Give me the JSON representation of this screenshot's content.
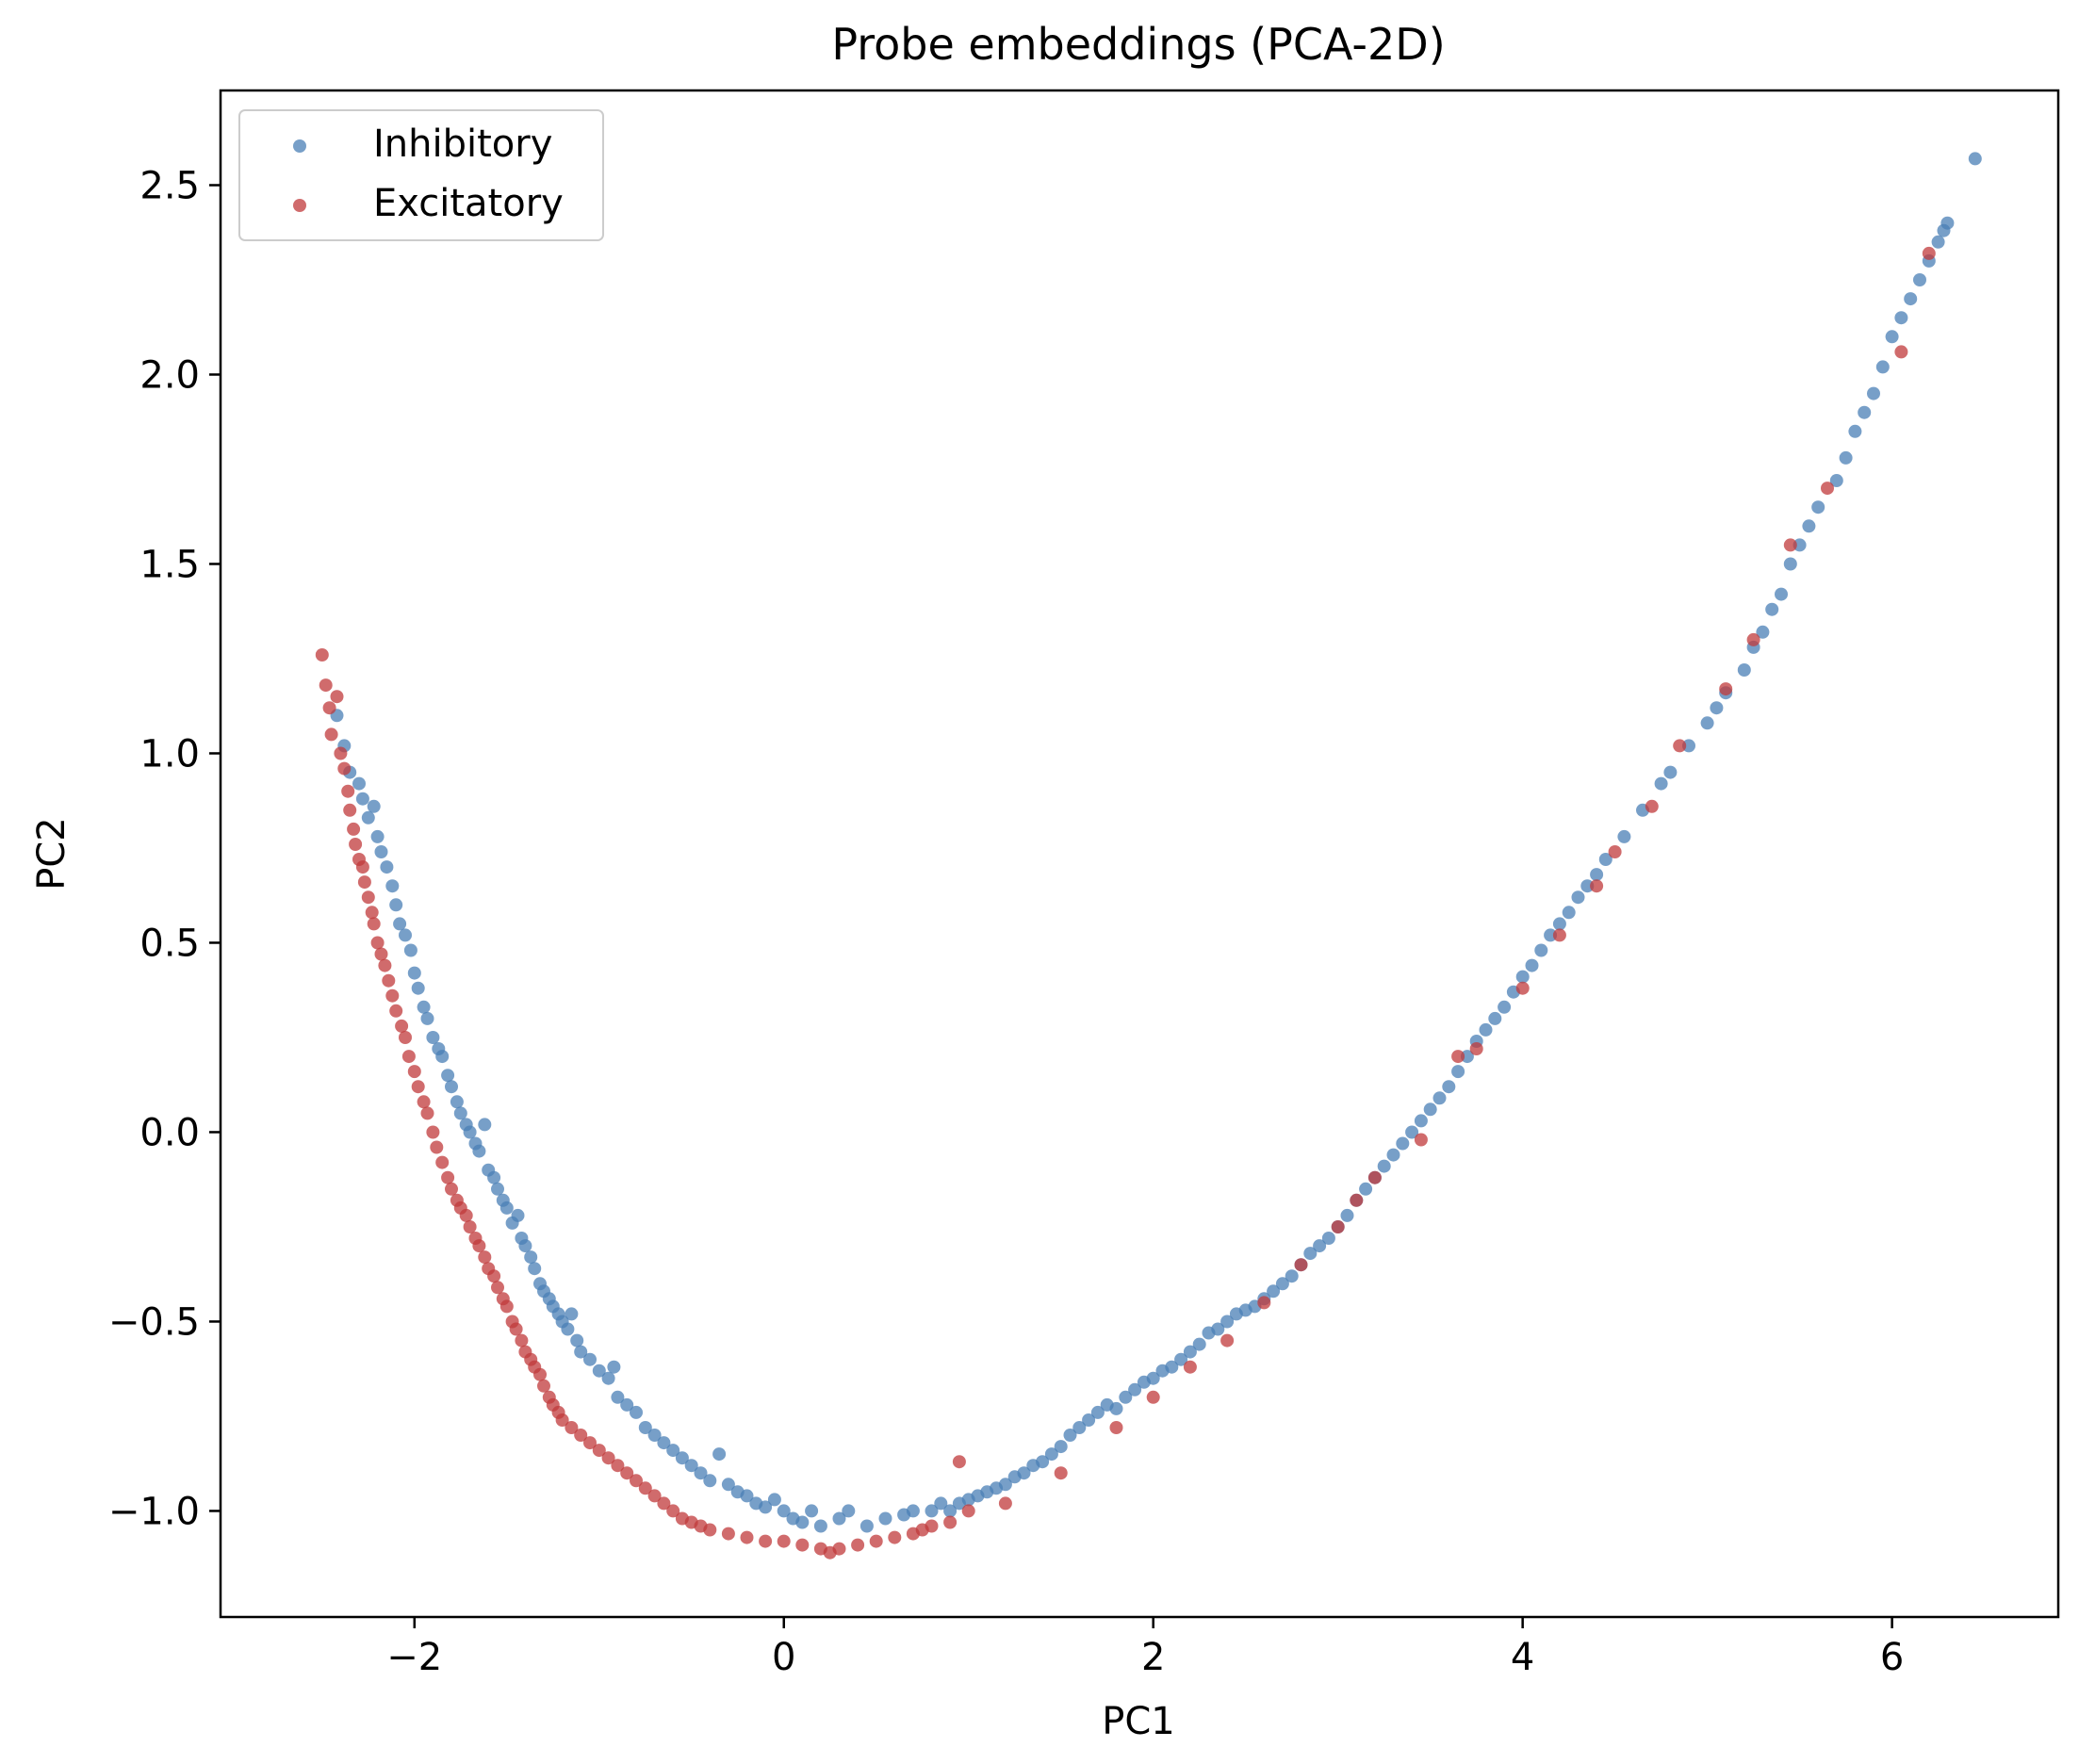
{
  "chart_data": {
    "type": "scatter",
    "title": "Probe embeddings (PCA-2D)",
    "xlabel": "PC1",
    "ylabel": "PC2",
    "xlim": [
      -3.05,
      6.9
    ],
    "ylim": [
      -1.28,
      2.75
    ],
    "xticks": [
      -2,
      0,
      2,
      4,
      6
    ],
    "xtick_labels": [
      "−2",
      "0",
      "2",
      "4",
      "6"
    ],
    "yticks": [
      -1.0,
      -0.5,
      0.0,
      0.5,
      1.0,
      1.5,
      2.0,
      2.5
    ],
    "ytick_labels": [
      "−1.0",
      "−0.5",
      "0.0",
      "0.5",
      "1.0",
      "1.5",
      "2.0",
      "2.5"
    ],
    "grid": false,
    "legend_position": "top-left",
    "series": [
      {
        "name": "Inhibitory",
        "color": "#4a7fb5",
        "points": [
          [
            -2.42,
            1.1
          ],
          [
            -2.38,
            1.02
          ],
          [
            -2.35,
            0.95
          ],
          [
            -2.3,
            0.92
          ],
          [
            -2.28,
            0.88
          ],
          [
            -2.25,
            0.83
          ],
          [
            -2.22,
            0.86
          ],
          [
            -2.2,
            0.78
          ],
          [
            -2.18,
            0.74
          ],
          [
            -2.15,
            0.7
          ],
          [
            -2.12,
            0.65
          ],
          [
            -2.1,
            0.6
          ],
          [
            -2.08,
            0.55
          ],
          [
            -2.05,
            0.52
          ],
          [
            -2.02,
            0.48
          ],
          [
            -2.0,
            0.42
          ],
          [
            -1.98,
            0.38
          ],
          [
            -1.95,
            0.33
          ],
          [
            -1.93,
            0.3
          ],
          [
            -1.9,
            0.25
          ],
          [
            -1.87,
            0.22
          ],
          [
            -1.85,
            0.2
          ],
          [
            -1.82,
            0.15
          ],
          [
            -1.8,
            0.12
          ],
          [
            -1.77,
            0.08
          ],
          [
            -1.75,
            0.05
          ],
          [
            -1.72,
            0.02
          ],
          [
            -1.7,
            0.0
          ],
          [
            -1.67,
            -0.03
          ],
          [
            -1.65,
            -0.05
          ],
          [
            -1.62,
            0.02
          ],
          [
            -1.6,
            -0.1
          ],
          [
            -1.57,
            -0.12
          ],
          [
            -1.55,
            -0.15
          ],
          [
            -1.52,
            -0.18
          ],
          [
            -1.5,
            -0.2
          ],
          [
            -1.47,
            -0.24
          ],
          [
            -1.44,
            -0.22
          ],
          [
            -1.42,
            -0.28
          ],
          [
            -1.4,
            -0.3
          ],
          [
            -1.37,
            -0.33
          ],
          [
            -1.35,
            -0.36
          ],
          [
            -1.32,
            -0.4
          ],
          [
            -1.3,
            -0.42
          ],
          [
            -1.27,
            -0.44
          ],
          [
            -1.25,
            -0.46
          ],
          [
            -1.22,
            -0.48
          ],
          [
            -1.2,
            -0.5
          ],
          [
            -1.17,
            -0.52
          ],
          [
            -1.15,
            -0.48
          ],
          [
            -1.12,
            -0.55
          ],
          [
            -1.1,
            -0.58
          ],
          [
            -1.05,
            -0.6
          ],
          [
            -1.0,
            -0.63
          ],
          [
            -0.95,
            -0.65
          ],
          [
            -0.92,
            -0.62
          ],
          [
            -0.9,
            -0.7
          ],
          [
            -0.85,
            -0.72
          ],
          [
            -0.8,
            -0.74
          ],
          [
            -0.75,
            -0.78
          ],
          [
            -0.7,
            -0.8
          ],
          [
            -0.65,
            -0.82
          ],
          [
            -0.6,
            -0.84
          ],
          [
            -0.55,
            -0.86
          ],
          [
            -0.5,
            -0.88
          ],
          [
            -0.45,
            -0.9
          ],
          [
            -0.4,
            -0.92
          ],
          [
            -0.35,
            -0.85
          ],
          [
            -0.3,
            -0.93
          ],
          [
            -0.25,
            -0.95
          ],
          [
            -0.2,
            -0.96
          ],
          [
            -0.15,
            -0.98
          ],
          [
            -0.1,
            -0.99
          ],
          [
            -0.05,
            -0.97
          ],
          [
            0.0,
            -1.0
          ],
          [
            0.05,
            -1.02
          ],
          [
            0.1,
            -1.03
          ],
          [
            0.15,
            -1.0
          ],
          [
            0.2,
            -1.04
          ],
          [
            0.3,
            -1.02
          ],
          [
            0.35,
            -1.0
          ],
          [
            0.45,
            -1.04
          ],
          [
            0.55,
            -1.02
          ],
          [
            0.65,
            -1.01
          ],
          [
            0.7,
            -1.0
          ],
          [
            0.8,
            -1.0
          ],
          [
            0.85,
            -0.98
          ],
          [
            0.9,
            -1.0
          ],
          [
            0.95,
            -0.98
          ],
          [
            1.0,
            -0.97
          ],
          [
            1.05,
            -0.96
          ],
          [
            1.1,
            -0.95
          ],
          [
            1.15,
            -0.94
          ],
          [
            1.2,
            -0.93
          ],
          [
            1.25,
            -0.91
          ],
          [
            1.3,
            -0.9
          ],
          [
            1.35,
            -0.88
          ],
          [
            1.4,
            -0.87
          ],
          [
            1.45,
            -0.85
          ],
          [
            1.5,
            -0.83
          ],
          [
            1.55,
            -0.8
          ],
          [
            1.6,
            -0.78
          ],
          [
            1.65,
            -0.76
          ],
          [
            1.7,
            -0.74
          ],
          [
            1.75,
            -0.72
          ],
          [
            1.8,
            -0.73
          ],
          [
            1.85,
            -0.7
          ],
          [
            1.9,
            -0.68
          ],
          [
            1.95,
            -0.66
          ],
          [
            2.0,
            -0.65
          ],
          [
            2.05,
            -0.63
          ],
          [
            2.1,
            -0.62
          ],
          [
            2.15,
            -0.6
          ],
          [
            2.2,
            -0.58
          ],
          [
            2.25,
            -0.56
          ],
          [
            2.3,
            -0.53
          ],
          [
            2.35,
            -0.52
          ],
          [
            2.4,
            -0.5
          ],
          [
            2.45,
            -0.48
          ],
          [
            2.5,
            -0.47
          ],
          [
            2.55,
            -0.46
          ],
          [
            2.6,
            -0.44
          ],
          [
            2.65,
            -0.42
          ],
          [
            2.7,
            -0.4
          ],
          [
            2.75,
            -0.38
          ],
          [
            2.8,
            -0.35
          ],
          [
            2.85,
            -0.32
          ],
          [
            2.9,
            -0.3
          ],
          [
            2.95,
            -0.28
          ],
          [
            3.0,
            -0.25
          ],
          [
            3.05,
            -0.22
          ],
          [
            3.1,
            -0.18
          ],
          [
            3.15,
            -0.15
          ],
          [
            3.2,
            -0.12
          ],
          [
            3.25,
            -0.09
          ],
          [
            3.3,
            -0.06
          ],
          [
            3.35,
            -0.03
          ],
          [
            3.4,
            0.0
          ],
          [
            3.45,
            0.03
          ],
          [
            3.5,
            0.06
          ],
          [
            3.55,
            0.09
          ],
          [
            3.6,
            0.12
          ],
          [
            3.65,
            0.16
          ],
          [
            3.7,
            0.2
          ],
          [
            3.75,
            0.24
          ],
          [
            3.8,
            0.27
          ],
          [
            3.85,
            0.3
          ],
          [
            3.9,
            0.33
          ],
          [
            3.95,
            0.37
          ],
          [
            4.0,
            0.41
          ],
          [
            4.05,
            0.44
          ],
          [
            4.1,
            0.48
          ],
          [
            4.15,
            0.52
          ],
          [
            4.2,
            0.55
          ],
          [
            4.25,
            0.58
          ],
          [
            4.3,
            0.62
          ],
          [
            4.35,
            0.65
          ],
          [
            4.4,
            0.68
          ],
          [
            4.45,
            0.72
          ],
          [
            4.55,
            0.78
          ],
          [
            4.65,
            0.85
          ],
          [
            4.75,
            0.92
          ],
          [
            4.8,
            0.95
          ],
          [
            4.9,
            1.02
          ],
          [
            5.0,
            1.08
          ],
          [
            5.05,
            1.12
          ],
          [
            5.1,
            1.16
          ],
          [
            5.2,
            1.22
          ],
          [
            5.25,
            1.28
          ],
          [
            5.3,
            1.32
          ],
          [
            5.35,
            1.38
          ],
          [
            5.4,
            1.42
          ],
          [
            5.45,
            1.5
          ],
          [
            5.5,
            1.55
          ],
          [
            5.55,
            1.6
          ],
          [
            5.6,
            1.65
          ],
          [
            5.7,
            1.72
          ],
          [
            5.75,
            1.78
          ],
          [
            5.8,
            1.85
          ],
          [
            5.85,
            1.9
          ],
          [
            5.9,
            1.95
          ],
          [
            5.95,
            2.02
          ],
          [
            6.0,
            2.1
          ],
          [
            6.05,
            2.15
          ],
          [
            6.1,
            2.2
          ],
          [
            6.15,
            2.25
          ],
          [
            6.2,
            2.3
          ],
          [
            6.25,
            2.35
          ],
          [
            6.28,
            2.38
          ],
          [
            6.3,
            2.4
          ],
          [
            6.45,
            2.57
          ]
        ]
      },
      {
        "name": "Excitatory",
        "color": "#c0393b",
        "points": [
          [
            -2.5,
            1.26
          ],
          [
            -2.48,
            1.18
          ],
          [
            -2.46,
            1.12
          ],
          [
            -2.45,
            1.05
          ],
          [
            -2.42,
            1.15
          ],
          [
            -2.4,
            1.0
          ],
          [
            -2.38,
            0.96
          ],
          [
            -2.36,
            0.9
          ],
          [
            -2.35,
            0.85
          ],
          [
            -2.33,
            0.8
          ],
          [
            -2.32,
            0.76
          ],
          [
            -2.3,
            0.72
          ],
          [
            -2.28,
            0.7
          ],
          [
            -2.27,
            0.66
          ],
          [
            -2.25,
            0.62
          ],
          [
            -2.23,
            0.58
          ],
          [
            -2.22,
            0.55
          ],
          [
            -2.2,
            0.5
          ],
          [
            -2.18,
            0.47
          ],
          [
            -2.16,
            0.44
          ],
          [
            -2.14,
            0.4
          ],
          [
            -2.12,
            0.36
          ],
          [
            -2.1,
            0.32
          ],
          [
            -2.07,
            0.28
          ],
          [
            -2.05,
            0.25
          ],
          [
            -2.03,
            0.2
          ],
          [
            -2.0,
            0.16
          ],
          [
            -1.98,
            0.12
          ],
          [
            -1.95,
            0.08
          ],
          [
            -1.93,
            0.05
          ],
          [
            -1.9,
            0.0
          ],
          [
            -1.88,
            -0.04
          ],
          [
            -1.85,
            -0.08
          ],
          [
            -1.82,
            -0.12
          ],
          [
            -1.8,
            -0.15
          ],
          [
            -1.77,
            -0.18
          ],
          [
            -1.75,
            -0.2
          ],
          [
            -1.72,
            -0.22
          ],
          [
            -1.7,
            -0.25
          ],
          [
            -1.67,
            -0.28
          ],
          [
            -1.65,
            -0.3
          ],
          [
            -1.62,
            -0.33
          ],
          [
            -1.6,
            -0.36
          ],
          [
            -1.57,
            -0.38
          ],
          [
            -1.55,
            -0.41
          ],
          [
            -1.52,
            -0.44
          ],
          [
            -1.5,
            -0.46
          ],
          [
            -1.47,
            -0.5
          ],
          [
            -1.45,
            -0.52
          ],
          [
            -1.42,
            -0.55
          ],
          [
            -1.4,
            -0.58
          ],
          [
            -1.37,
            -0.6
          ],
          [
            -1.35,
            -0.62
          ],
          [
            -1.32,
            -0.64
          ],
          [
            -1.3,
            -0.67
          ],
          [
            -1.27,
            -0.7
          ],
          [
            -1.25,
            -0.72
          ],
          [
            -1.22,
            -0.74
          ],
          [
            -1.2,
            -0.76
          ],
          [
            -1.15,
            -0.78
          ],
          [
            -1.1,
            -0.8
          ],
          [
            -1.05,
            -0.82
          ],
          [
            -1.0,
            -0.84
          ],
          [
            -0.95,
            -0.86
          ],
          [
            -0.9,
            -0.88
          ],
          [
            -0.85,
            -0.9
          ],
          [
            -0.8,
            -0.92
          ],
          [
            -0.75,
            -0.94
          ],
          [
            -0.7,
            -0.96
          ],
          [
            -0.65,
            -0.98
          ],
          [
            -0.6,
            -1.0
          ],
          [
            -0.55,
            -1.02
          ],
          [
            -0.5,
            -1.03
          ],
          [
            -0.45,
            -1.04
          ],
          [
            -0.4,
            -1.05
          ],
          [
            -0.3,
            -1.06
          ],
          [
            -0.2,
            -1.07
          ],
          [
            -0.1,
            -1.08
          ],
          [
            0.0,
            -1.08
          ],
          [
            0.1,
            -1.09
          ],
          [
            0.2,
            -1.1
          ],
          [
            0.25,
            -1.11
          ],
          [
            0.3,
            -1.1
          ],
          [
            0.4,
            -1.09
          ],
          [
            0.5,
            -1.08
          ],
          [
            0.6,
            -1.07
          ],
          [
            0.7,
            -1.06
          ],
          [
            0.75,
            -1.05
          ],
          [
            0.8,
            -1.04
          ],
          [
            0.9,
            -1.03
          ],
          [
            0.95,
            -0.87
          ],
          [
            1.0,
            -1.0
          ],
          [
            1.2,
            -0.98
          ],
          [
            1.5,
            -0.9
          ],
          [
            1.8,
            -0.78
          ],
          [
            2.0,
            -0.7
          ],
          [
            2.2,
            -0.62
          ],
          [
            2.4,
            -0.55
          ],
          [
            2.6,
            -0.45
          ],
          [
            2.8,
            -0.35
          ],
          [
            3.0,
            -0.25
          ],
          [
            3.1,
            -0.18
          ],
          [
            3.2,
            -0.12
          ],
          [
            3.45,
            -0.02
          ],
          [
            3.65,
            0.2
          ],
          [
            3.75,
            0.22
          ],
          [
            4.0,
            0.38
          ],
          [
            4.2,
            0.52
          ],
          [
            4.4,
            0.65
          ],
          [
            4.5,
            0.74
          ],
          [
            4.7,
            0.86
          ],
          [
            4.85,
            1.02
          ],
          [
            5.1,
            1.17
          ],
          [
            5.25,
            1.3
          ],
          [
            5.45,
            1.55
          ],
          [
            5.65,
            1.7
          ],
          [
            6.05,
            2.06
          ],
          [
            6.2,
            2.32
          ]
        ]
      }
    ]
  }
}
